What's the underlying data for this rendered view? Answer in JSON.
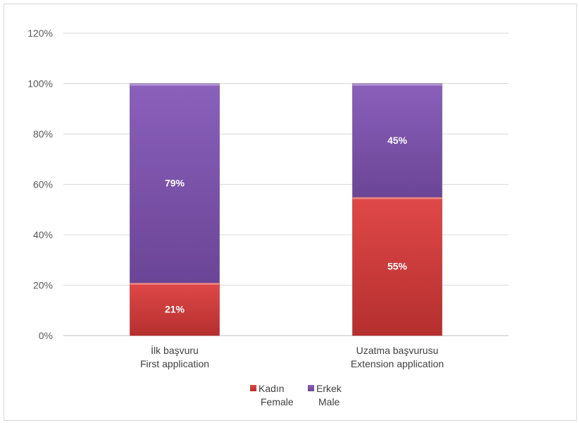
{
  "chart_data": {
    "type": "bar",
    "stacked": true,
    "categories": [
      [
        "İlk başvuru",
        "First application"
      ],
      [
        "Uzatma başvurusu",
        "Extension application"
      ]
    ],
    "series": [
      {
        "name": [
          "Kadın",
          "Female"
        ],
        "values": [
          21,
          55
        ],
        "labels": [
          "21%",
          "55%"
        ],
        "color": "#d13b3b"
      },
      {
        "name": [
          "Erkek",
          "Male"
        ],
        "values": [
          79,
          45
        ],
        "labels": [
          "79%",
          "45%"
        ],
        "color": "#7b52ab"
      }
    ],
    "ylim": [
      0,
      120
    ],
    "yticks": [
      0,
      20,
      40,
      60,
      80,
      100,
      120
    ],
    "ytick_labels": [
      "0%",
      "20%",
      "40%",
      "60%",
      "80%",
      "100%",
      "120%"
    ],
    "grid": true,
    "legend_position": "bottom"
  }
}
